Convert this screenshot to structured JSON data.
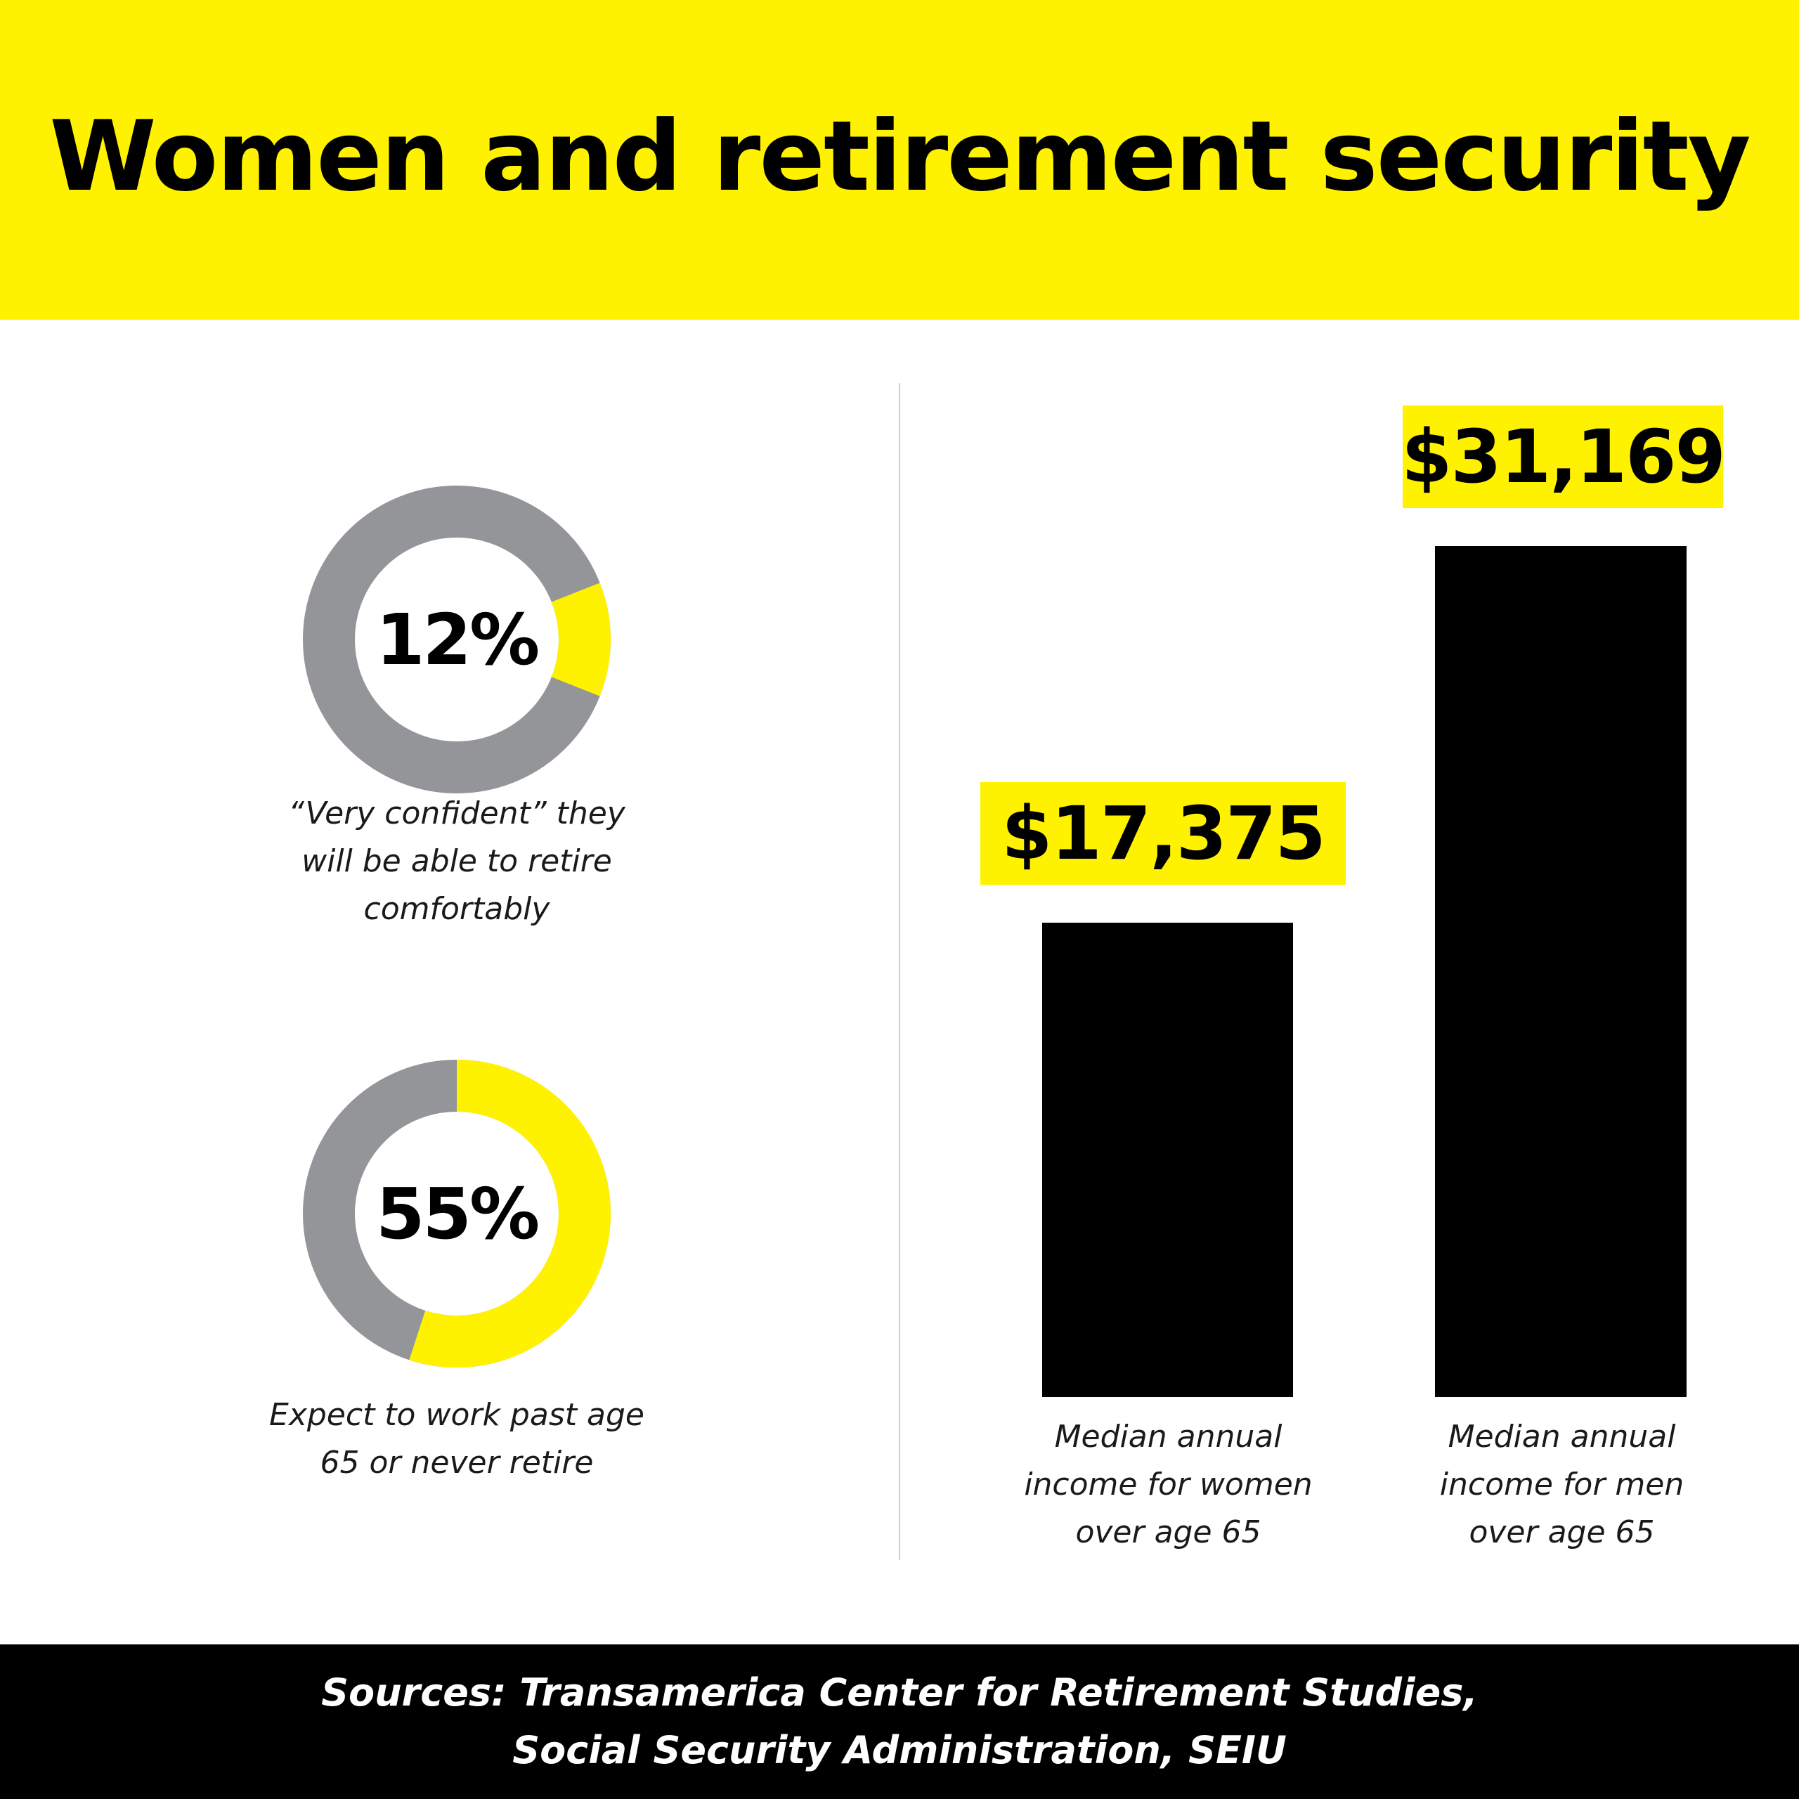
{
  "title": "Women and retirement security",
  "colors": {
    "accent": "#fff200",
    "ring": "#939598",
    "bar": "#000000",
    "footer_bg": "#000000"
  },
  "chart_data": [
    {
      "type": "pie",
      "variant": "donut",
      "value": 12,
      "value_label": "12%",
      "caption_lines": [
        "“Very confident” they",
        "will be able to retire",
        "comfortably"
      ]
    },
    {
      "type": "pie",
      "variant": "donut",
      "value": 55,
      "value_label": "55%",
      "caption_lines": [
        "Expect to work past age",
        "65 or never retire"
      ]
    },
    {
      "type": "bar",
      "categories": [
        "Median annual income for women over age 65",
        "Median annual income for men over age 65"
      ],
      "values": [
        17375,
        31169
      ],
      "value_labels": [
        "$17,375",
        "$31,169"
      ],
      "caption_lines": [
        [
          "Median annual",
          "income for women",
          "over age 65"
        ],
        [
          "Median annual",
          "income for men",
          "over age 65"
        ]
      ]
    }
  ],
  "footer": {
    "lines": [
      "Sources: Transamerica Center for Retirement Studies,",
      "Social Security Administration, SEIU"
    ]
  }
}
